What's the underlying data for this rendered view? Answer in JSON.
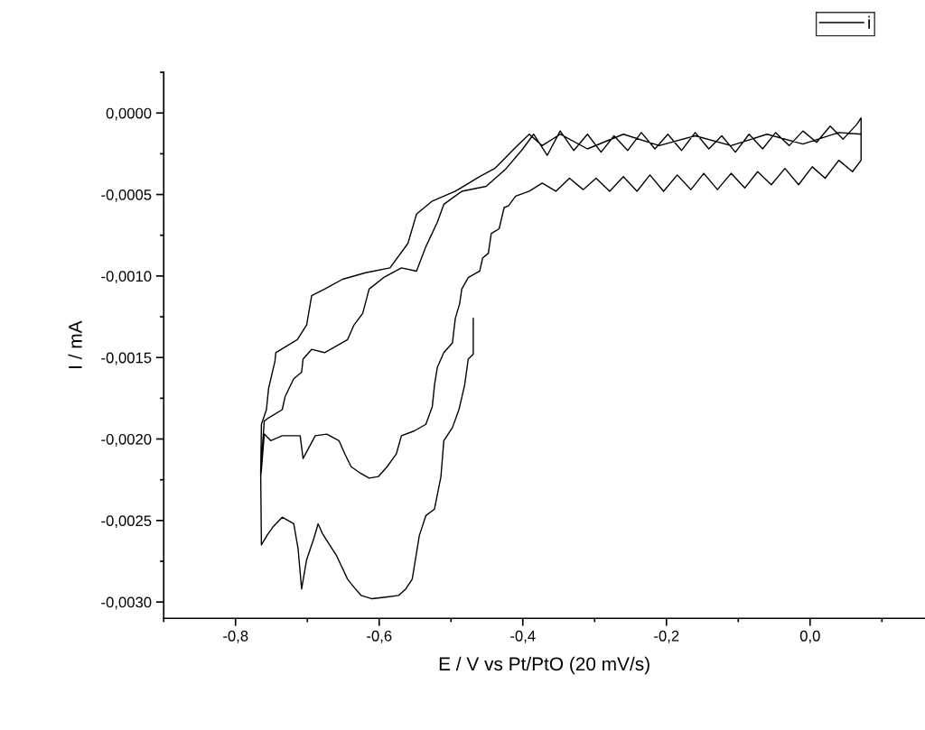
{
  "chart_data": {
    "type": "line",
    "xlabel": "E / V vs Pt/PtO (20 mV/s)",
    "ylabel": "I / mA",
    "xlim": [
      -0.9,
      0.16
    ],
    "ylim": [
      -0.0031,
      0.00025
    ],
    "xticks": [
      {
        "value": -0.8,
        "label": "-0,8"
      },
      {
        "value": -0.6,
        "label": "-0,6"
      },
      {
        "value": -0.4,
        "label": "-0,4"
      },
      {
        "value": -0.2,
        "label": "-0,2"
      },
      {
        "value": 0.0,
        "label": "0,0"
      }
    ],
    "yticks": [
      {
        "value": 0.0,
        "label": "0,0000"
      },
      {
        "value": -0.0005,
        "label": "-0,0005"
      },
      {
        "value": -0.001,
        "label": "-0,0010"
      },
      {
        "value": -0.0015,
        "label": "-0,0015"
      },
      {
        "value": -0.002,
        "label": "-0,0020"
      },
      {
        "value": -0.0025,
        "label": "-0,0025"
      },
      {
        "value": -0.003,
        "label": "-0,0030"
      }
    ],
    "grid": false,
    "legend": "top right",
    "marker": "none",
    "line_style": "solid",
    "series": [
      {
        "name": "i",
        "color": "#000000",
        "x": [
          -0.469,
          -0.469,
          -0.476,
          -0.481,
          -0.489,
          -0.498,
          -0.51,
          -0.514,
          -0.523,
          -0.535,
          -0.544,
          -0.554,
          -0.563,
          -0.573,
          -0.591,
          -0.61,
          -0.625,
          -0.635,
          -0.644,
          -0.66,
          -0.669,
          -0.679,
          -0.685,
          -0.691,
          -0.701,
          -0.708,
          -0.713,
          -0.719,
          -0.735,
          -0.748,
          -0.756,
          -0.764,
          -0.765,
          -0.76,
          -0.754,
          -0.735,
          -0.731,
          -0.719,
          -0.708,
          -0.706,
          -0.694,
          -0.676,
          -0.66,
          -0.644,
          -0.635,
          -0.623,
          -0.614,
          -0.594,
          -0.569,
          -0.548,
          -0.535,
          -0.519,
          -0.51,
          -0.485,
          -0.451,
          -0.423,
          -0.4,
          -0.385,
          -0.366,
          -0.348,
          -0.329,
          -0.31,
          -0.291,
          -0.273,
          -0.254,
          -0.235,
          -0.216,
          -0.198,
          -0.179,
          -0.16,
          -0.141,
          -0.123,
          -0.104,
          -0.085,
          -0.066,
          -0.048,
          -0.029,
          -0.01,
          0.009,
          0.028,
          0.046,
          0.065,
          0.071,
          0.071,
          0.059,
          0.04,
          0.021,
          0.003,
          -0.016,
          -0.035,
          -0.054,
          -0.073,
          -0.091,
          -0.11,
          -0.129,
          -0.148,
          -0.166,
          -0.185,
          -0.204,
          -0.223,
          -0.241,
          -0.26,
          -0.279,
          -0.298,
          -0.316,
          -0.335,
          -0.354,
          -0.373,
          -0.391,
          -0.41,
          -0.42,
          -0.426,
          -0.433,
          -0.444,
          -0.448,
          -0.456,
          -0.46,
          -0.476,
          -0.485,
          -0.488,
          -0.494,
          -0.498,
          -0.51,
          -0.519,
          -0.523,
          -0.526,
          -0.535,
          -0.551,
          -0.569,
          -0.576,
          -0.589,
          -0.601,
          -0.614,
          -0.626,
          -0.639,
          -0.648,
          -0.656,
          -0.673,
          -0.689,
          -0.706,
          -0.71,
          -0.735,
          -0.751,
          -0.76,
          -0.764,
          -0.765,
          -0.764,
          -0.757,
          -0.754,
          -0.745,
          -0.744,
          -0.714,
          -0.701,
          -0.694,
          -0.676,
          -0.651,
          -0.619,
          -0.585,
          -0.56,
          -0.548,
          -0.526,
          -0.494,
          -0.46,
          -0.439,
          -0.41,
          -0.391,
          -0.373,
          -0.348,
          -0.31,
          -0.26,
          -0.21,
          -0.16,
          -0.11,
          -0.06,
          -0.01,
          0.04,
          0.071
        ],
        "values": [
          -0.00126,
          -0.00148,
          -0.00151,
          -0.00167,
          -0.00182,
          -0.00193,
          -0.00201,
          -0.00223,
          -0.00243,
          -0.00247,
          -0.00259,
          -0.00286,
          -0.00292,
          -0.00296,
          -0.00297,
          -0.00298,
          -0.00296,
          -0.00291,
          -0.00286,
          -0.00271,
          -0.00265,
          -0.00258,
          -0.00252,
          -0.00261,
          -0.00274,
          -0.00292,
          -0.00267,
          -0.00252,
          -0.00248,
          -0.00254,
          -0.00259,
          -0.00265,
          -0.00219,
          -0.00189,
          -0.00187,
          -0.00182,
          -0.00174,
          -0.00163,
          -0.00159,
          -0.00151,
          -0.00145,
          -0.00147,
          -0.00143,
          -0.00139,
          -0.0013,
          -0.00123,
          -0.00108,
          -0.00101,
          -0.00095,
          -0.00097,
          -0.00082,
          -0.00067,
          -0.00056,
          -0.00048,
          -0.00045,
          -0.00034,
          -0.00022,
          -0.00013,
          -0.00026,
          -0.00011,
          -0.00023,
          -0.00013,
          -0.00024,
          -0.00014,
          -0.00023,
          -0.00012,
          -0.00022,
          -0.00013,
          -0.00023,
          -0.00012,
          -0.00022,
          -0.00014,
          -0.00024,
          -0.00013,
          -0.00022,
          -0.00012,
          -0.0002,
          -0.00011,
          -0.00018,
          -8e-05,
          -0.00016,
          -7e-05,
          -3e-05,
          -0.00029,
          -0.00036,
          -0.00029,
          -0.0004,
          -0.00033,
          -0.00044,
          -0.00034,
          -0.00044,
          -0.00036,
          -0.00046,
          -0.00037,
          -0.00047,
          -0.00037,
          -0.00047,
          -0.00038,
          -0.00048,
          -0.00038,
          -0.00048,
          -0.00039,
          -0.00048,
          -0.0004,
          -0.00047,
          -0.0004,
          -0.00048,
          -0.00043,
          -0.00048,
          -0.00051,
          -0.00057,
          -0.00058,
          -0.00071,
          -0.00074,
          -0.00086,
          -0.00089,
          -0.00097,
          -0.00101,
          -0.00108,
          -0.00117,
          -0.00126,
          -0.00141,
          -0.00147,
          -0.00156,
          -0.00167,
          -0.0018,
          -0.00191,
          -0.00195,
          -0.00198,
          -0.00209,
          -0.00217,
          -0.00223,
          -0.00224,
          -0.00221,
          -0.00217,
          -0.00209,
          -0.00201,
          -0.00197,
          -0.00198,
          -0.00212,
          -0.00198,
          -0.00198,
          -0.00201,
          -0.00197,
          -0.00219,
          -0.00223,
          -0.00191,
          -0.00182,
          -0.00169,
          -0.00152,
          -0.00147,
          -0.00139,
          -0.0013,
          -0.00112,
          -0.00108,
          -0.00102,
          -0.00098,
          -0.00095,
          -0.0008,
          -0.00062,
          -0.00054,
          -0.00048,
          -0.00039,
          -0.00034,
          -0.00021,
          -0.00013,
          -0.0002,
          -0.00013,
          -0.00022,
          -0.00013,
          -0.0002,
          -0.00014,
          -0.0002,
          -0.00013,
          -0.00019,
          -0.00012,
          -0.00013
        ]
      }
    ]
  }
}
